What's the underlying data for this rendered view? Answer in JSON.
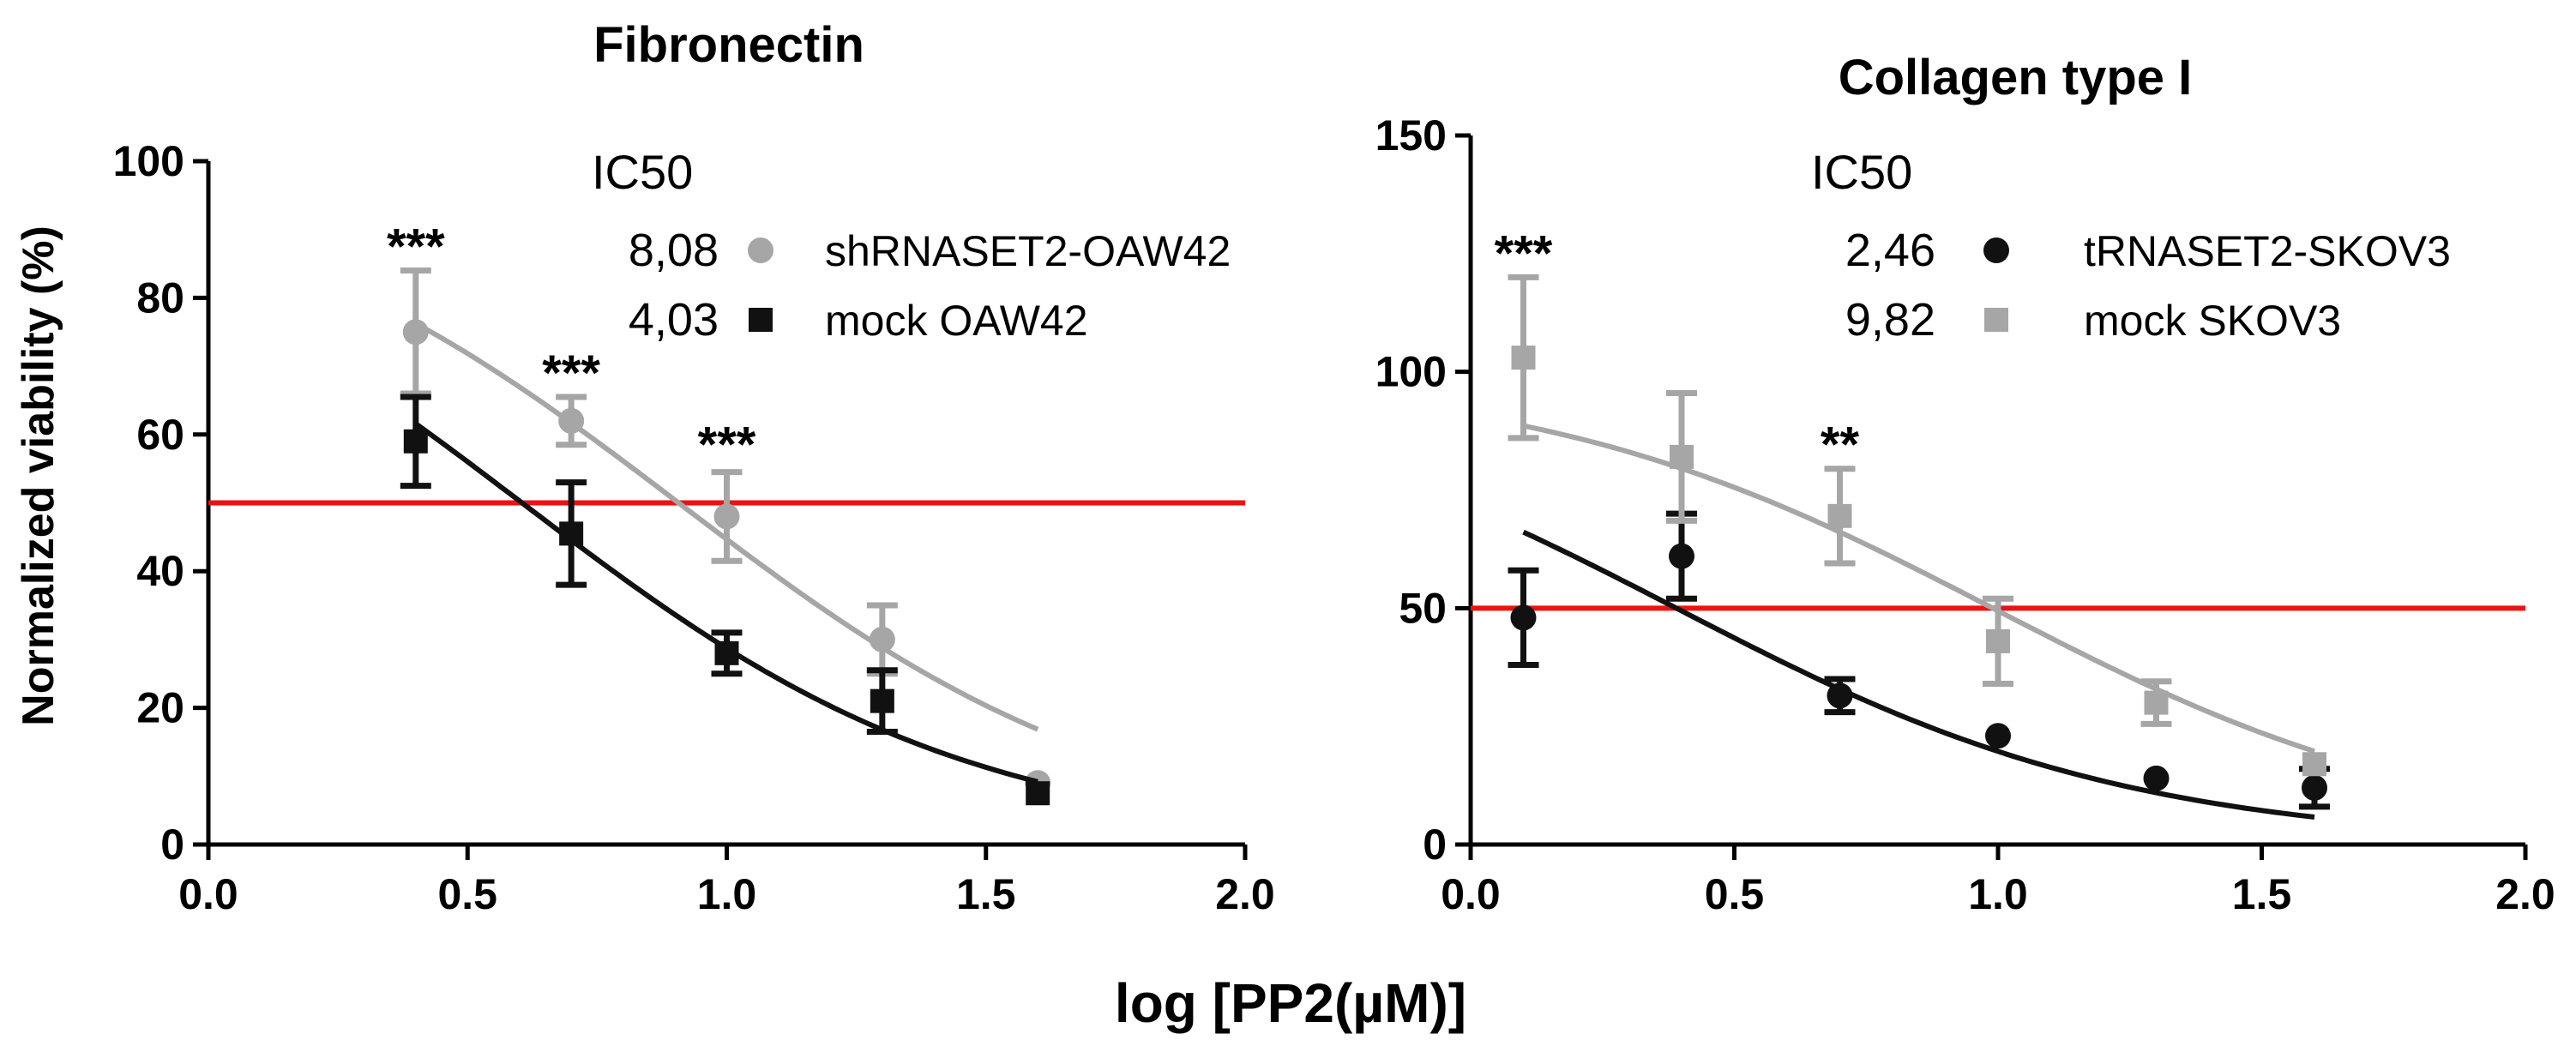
{
  "figure": {
    "shared_xlabel": "log [PP2(µM)]",
    "shared_ylabel": "Normalized viability (%)"
  },
  "colors": {
    "gray": "#a6a6a6",
    "black": "#111111",
    "threshold": "#ee1111"
  },
  "chart_data": [
    {
      "type": "scatter",
      "title": "Fibronectin",
      "xlabel": "log [PP2(µM)]",
      "ylabel": "Normalized viability (%)",
      "xlim": [
        0.0,
        2.0
      ],
      "ylim": [
        0,
        100
      ],
      "xticks": [
        0.0,
        0.5,
        1.0,
        1.5,
        2.0
      ],
      "xtick_labels": [
        "0.0",
        "0.5",
        "1.0",
        "1.5",
        "2.0"
      ],
      "yticks": [
        0,
        20,
        40,
        60,
        80,
        100
      ],
      "ytick_labels": [
        "0",
        "20",
        "40",
        "60",
        "80",
        "100"
      ],
      "threshold": 50,
      "legend_header": "IC50",
      "series": [
        {
          "name": "shRNASET2-OAW42",
          "ic50": "8,08",
          "color": "gray",
          "marker": "circle",
          "x": [
            0.4,
            0.7,
            1.0,
            1.3,
            1.6
          ],
          "y": [
            75,
            62,
            48,
            30,
            9
          ],
          "err": [
            9,
            3.5,
            6.5,
            5,
            0
          ],
          "fit": {
            "top": 100,
            "bottom": 0,
            "logIC50": 0.907,
            "hill": -1.0,
            "xrange": [
              0.4,
              1.6
            ]
          }
        },
        {
          "name": "mock OAW42",
          "ic50": "4,03",
          "color": "black",
          "marker": "square",
          "x": [
            0.4,
            0.7,
            1.0,
            1.3,
            1.6
          ],
          "y": [
            59,
            45.5,
            28,
            21,
            7.5
          ],
          "err": [
            6.5,
            7.5,
            3,
            4.5,
            0
          ],
          "fit": {
            "top": 100,
            "bottom": 0,
            "logIC50": 0.605,
            "hill": -1.0,
            "xrange": [
              0.4,
              1.6
            ]
          }
        }
      ],
      "annotations": [
        {
          "text": "***",
          "x": 0.4,
          "y": 84
        },
        {
          "text": "***",
          "x": 0.7,
          "y": 65.5
        },
        {
          "text": "***",
          "x": 1.0,
          "y": 55
        }
      ]
    },
    {
      "type": "scatter",
      "title": "Collagen type I",
      "xlabel": "log [PP2(µM)]",
      "ylabel": "",
      "xlim": [
        0.0,
        2.0
      ],
      "ylim": [
        0,
        150
      ],
      "xticks": [
        0.0,
        0.5,
        1.0,
        1.5,
        2.0
      ],
      "xtick_labels": [
        "0.0",
        "0.5",
        "1.0",
        "1.5",
        "2.0"
      ],
      "yticks": [
        0,
        50,
        100,
        150
      ],
      "ytick_labels": [
        "0",
        "50",
        "100",
        "150"
      ],
      "threshold": 50,
      "legend_header": "IC50",
      "series": [
        {
          "name": "tRNASET2-SKOV3",
          "ic50": "2,46",
          "color": "black",
          "marker": "circle",
          "x": [
            0.1,
            0.4,
            0.7,
            1.0,
            1.3,
            1.6
          ],
          "y": [
            48,
            61,
            31.5,
            23,
            14,
            12
          ],
          "err": [
            10,
            9,
            3.5,
            0,
            0,
            4
          ],
          "fit": {
            "top": 100,
            "bottom": 0,
            "logIC50": 0.39,
            "hill": -1.0,
            "xrange": [
              0.1,
              1.6
            ]
          }
        },
        {
          "name": "mock SKOV3",
          "ic50": "9,82",
          "color": "gray",
          "marker": "square",
          "x": [
            0.1,
            0.4,
            0.7,
            1.0,
            1.3,
            1.6
          ],
          "y": [
            103,
            82,
            69.5,
            43,
            30,
            17
          ],
          "err": [
            17,
            13.5,
            10,
            9,
            4.5,
            0
          ],
          "fit": {
            "top": 100,
            "bottom": 0,
            "logIC50": 0.99,
            "hill": -1.0,
            "xrange": [
              0.1,
              1.6
            ]
          }
        }
      ],
      "annotations": [
        {
          "text": "***",
          "x": 0.1,
          "y": 120
        },
        {
          "text": "**",
          "x": 0.7,
          "y": 79.5
        }
      ]
    }
  ]
}
